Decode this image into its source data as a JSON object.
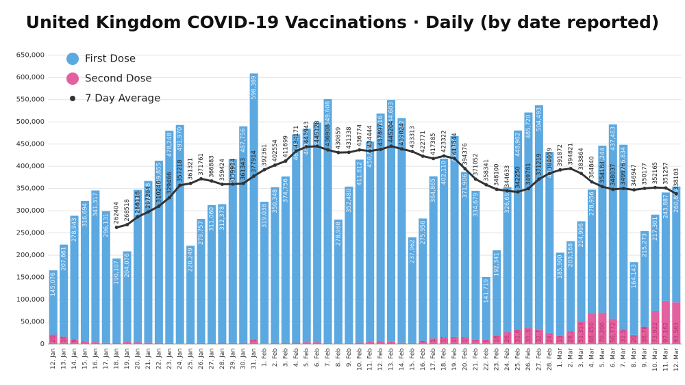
{
  "chart_data": {
    "type": "bar",
    "stacked": true,
    "title": "United Kingdom COVID-19 Vaccinations · Daily (by date reported)",
    "categories": [
      "12. Jan",
      "13. Jan",
      "14. Jan",
      "15. Jan",
      "16. Jan",
      "17. Jan",
      "18. Jan",
      "19. Jan",
      "20. Jan",
      "21. Jan",
      "22. Jan",
      "23. Jan",
      "24. Jan",
      "25. Jan",
      "26. Jan",
      "27. Jan",
      "28. Jan",
      "29. Jan",
      "30. Jan",
      "31. Jan",
      "1. Feb",
      "2. Feb",
      "3. Feb",
      "4. Feb",
      "5. Feb",
      "6. Feb",
      "7. Feb",
      "8. Feb",
      "9. Feb",
      "10. Feb",
      "11. Feb",
      "12. Feb",
      "13. Feb",
      "14. Feb",
      "15. Feb",
      "16. Feb",
      "17. Feb",
      "18. Feb",
      "19. Feb",
      "20. Feb",
      "21. Feb",
      "22. Feb",
      "23. Feb",
      "24. Feb",
      "25. Feb",
      "26. Feb",
      "27. Feb",
      "28. Feb",
      "1. Mar",
      "2. Mar",
      "3. Mar",
      "4. Mar",
      "5. Mar",
      "6. Mar",
      "7. Mar",
      "8. Mar",
      "9. Mar",
      "10. Mar",
      "11. Mar",
      "12. Mar"
    ],
    "series": [
      {
        "name": "First Dose",
        "type": "bar",
        "color": "#5ca8e0",
        "values": [
          145076,
          207661,
          278943,
          316694,
          341317,
          296131,
          190107,
          204076,
          343163,
          363508,
          409855,
          478248,
          491970,
          220249,
          279757,
          311060,
          312378,
          414419,
          487756,
          598389,
          319038,
          350348,
          374756,
          469016,
          480560,
          494163,
          549608,
          278988,
          352480,
          411812,
          450810,
          513116,
          544603,
          505362,
          237962,
          275956,
          364865,
          402110,
          452454,
          371906,
          334679,
          141719,
          192341,
          326692,
          448962,
          485720,
          504493,
          407503,
          185900,
          203168,
          224996,
          278956,
          376244,
          437463,
          416834,
          164143,
          215273,
          217301,
          243887,
          260809
        ],
        "value_labels": [
          "145,076",
          "207,661",
          "278,943",
          "316,694",
          "341,317",
          "296,131",
          "190,107",
          "204,076",
          "343,163",
          "363,508",
          "409,855",
          "478,248",
          "491,970",
          "220,249",
          "279,757",
          "311,060",
          "312,378",
          "414,419",
          "487,756",
          "598,389",
          "319,038",
          "350,348",
          "374,756",
          "469,016",
          "480,560",
          "494,163",
          "549,608",
          "278,988",
          "352,480",
          "411,812",
          "450,810",
          "513,116",
          "544,603",
          "505,362",
          "237,962",
          "275,956",
          "364,865",
          "402,110",
          "452,454",
          "371,906",
          "334,679",
          "141,719",
          "192,341",
          "326,692",
          "448,962",
          "485,720",
          "504,493",
          "407,503",
          "185,900",
          "203,168",
          "224,996",
          "278,956",
          "376,244",
          "437,463",
          "416,834",
          "164,143",
          "215,273",
          "217,301",
          "243,887",
          "260,809"
        ]
      },
      {
        "name": "Second Dose",
        "type": "bar",
        "color": "#e3619e",
        "values": [
          20768,
          16065,
          9745,
          5257,
          4208,
          2600,
          2229,
          4505,
          3759,
          3411,
          2760,
          1821,
          1043,
          818,
          1958,
          1710,
          2329,
          1769,
          2176,
          10621,
          1156,
          2587,
          2186,
          2995,
          4036,
          4064,
          1662,
          862,
          1811,
          3161,
          4994,
          5647,
          4775,
          2846,
          1915,
          6535,
          12412,
          15147,
          15667,
          15294,
          10263,
          9177,
          18463,
          26317,
          31613,
          35319,
          32773,
          24782,
          19684,
          28282,
          51314,
          68450,
          70206,
          56772,
          31562,
          20241,
          38786,
          73922,
          97162,
          93563
        ],
        "value_labels": [
          "20,768",
          "16,065",
          "9,745",
          "5,257",
          "4,208",
          "2,600",
          "2,229",
          "4,505",
          "3,759",
          "3,411",
          "2,760",
          "1,821",
          "1,043",
          "818",
          "1,958",
          "1,710",
          "2,329",
          "1,769",
          "2,176",
          "10,621",
          "1,156",
          "2,587",
          "2,186",
          "2,995",
          "4,036",
          "4,064",
          "1,662",
          "862",
          "1,811",
          "3,161",
          "4,994",
          "5,647",
          "4,775",
          "2,846",
          "1,915",
          "6,535",
          "12,412",
          "15,147",
          "15,667",
          "15,294",
          "10,263",
          "9,177",
          "18,463",
          "26,317",
          "31,613",
          "35,319",
          "32,773",
          "24,782",
          "19,684",
          "28,282",
          "51,314",
          "68,450",
          "70,206",
          "56,772",
          "31,562",
          "20,241",
          "38,786",
          "73,922",
          "97,162",
          "93,563"
        ]
      },
      {
        "name": "7 Day Average",
        "type": "line",
        "color": "#333333",
        "values": [
          null,
          null,
          null,
          null,
          null,
          null,
          262404,
          268518,
          286118,
          297294,
          310246,
          329466,
          357218,
          361321,
          371761,
          366883,
          359424,
          359934,
          361343,
          377914,
          392361,
          402554,
          411699,
          434171,
          443943,
          445128,
          436908,
          430859,
          431338,
          436774,
          434444,
          437897,
          445204,
          439024,
          433313,
          422771,
          417385,
          423322,
          417544,
          394376,
          371052,
          358341,
          348100,
          344633,
          342250,
          349781,
          371219,
          384059,
          391872,
          394821,
          383864,
          364840,
          354184,
          348037,
          349976,
          346947,
          350177,
          352165,
          351257,
          338103
        ]
      }
    ],
    "ylim": [
      0,
      665000
    ],
    "yticks": [
      0,
      {
        "value": 50000,
        "label": "50,000"
      },
      {
        "value": 100000,
        "label": "100,000"
      },
      {
        "value": 150000,
        "label": "150,000"
      },
      {
        "value": 200000,
        "label": "200,000"
      },
      {
        "value": 250000,
        "label": "250,000"
      },
      {
        "value": 300000,
        "label": "300,000"
      },
      {
        "value": 350000,
        "label": "350,000"
      },
      {
        "value": 400000,
        "label": "400,000"
      },
      {
        "value": 450000,
        "label": "450,000"
      },
      {
        "value": 500000,
        "label": "500,000"
      },
      {
        "value": 550000,
        "label": "550,000"
      },
      {
        "value": 600000,
        "label": "600,000"
      },
      {
        "value": 650000,
        "label": "650,000"
      }
    ],
    "grid": true,
    "legend": "top-left"
  }
}
